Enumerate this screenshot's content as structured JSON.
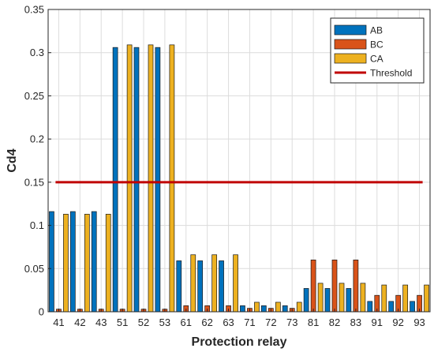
{
  "chart_data": {
    "type": "bar",
    "categories": [
      "41",
      "42",
      "43",
      "51",
      "52",
      "53",
      "61",
      "62",
      "63",
      "71",
      "72",
      "73",
      "81",
      "82",
      "83",
      "91",
      "92",
      "93"
    ],
    "series": [
      {
        "name": "AB",
        "color": "#0072BD",
        "values": [
          0.116,
          0.116,
          0.116,
          0.306,
          0.306,
          0.306,
          0.059,
          0.059,
          0.059,
          0.007,
          0.007,
          0.007,
          0.027,
          0.027,
          0.027,
          0.012,
          0.012,
          0.012
        ]
      },
      {
        "name": "BC",
        "color": "#D95319",
        "values": [
          0.003,
          0.003,
          0.003,
          0.003,
          0.003,
          0.003,
          0.007,
          0.007,
          0.007,
          0.004,
          0.004,
          0.004,
          0.06,
          0.06,
          0.06,
          0.019,
          0.019,
          0.019
        ]
      },
      {
        "name": "CA",
        "color": "#EDB120",
        "values": [
          0.113,
          0.113,
          0.113,
          0.309,
          0.309,
          0.309,
          0.066,
          0.066,
          0.066,
          0.011,
          0.011,
          0.011,
          0.033,
          0.033,
          0.033,
          0.031,
          0.031,
          0.031
        ]
      }
    ],
    "threshold": {
      "name": "Threshold",
      "value": 0.15,
      "color": "#C00000"
    },
    "xlabel": "Protection relay",
    "ylabel": "Cd4",
    "ylim": [
      0,
      0.35
    ],
    "yticks": [
      0,
      0.05,
      0.1,
      0.15,
      0.2,
      0.25,
      0.3,
      0.35
    ],
    "ytick_labels": [
      "0",
      "0.05",
      "0.1",
      "0.15",
      "0.2",
      "0.25",
      "0.3",
      "0.35"
    ],
    "grid": true,
    "legend_position": "top-right"
  }
}
